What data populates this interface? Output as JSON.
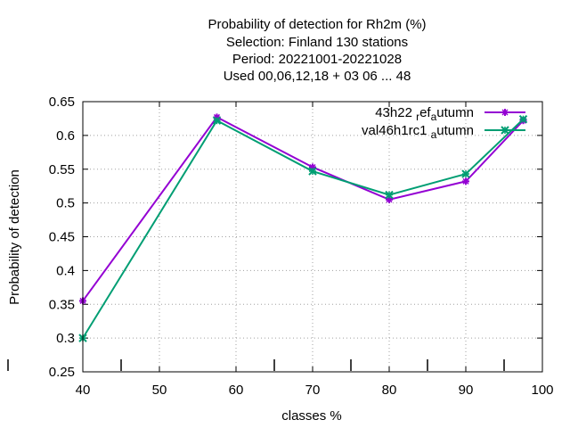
{
  "chart_data": {
    "type": "line",
    "title_lines": [
      "Probability of detection  for Rh2m (%)",
      "Selection: Finland    130 stations",
      "Period: 20221001-20221028",
      "Used  00,06,12,18  + 03 06 ... 48"
    ],
    "xlabel": "classes %",
    "ylabel": "Probability of detection",
    "xlim": [
      40,
      100
    ],
    "ylim": [
      0.25,
      0.65
    ],
    "x_ticks": [
      40,
      50,
      60,
      70,
      80,
      90,
      100
    ],
    "x_tick_labels": [
      "40",
      "50",
      "60",
      "70",
      "80",
      "90",
      "100"
    ],
    "y_ticks": [
      0.25,
      0.3,
      0.35,
      0.4,
      0.45,
      0.5,
      0.55,
      0.6,
      0.65
    ],
    "y_tick_labels": [
      "0.25",
      "0.3",
      "0.35",
      "0.4",
      "0.45",
      "0.5",
      "0.55",
      "0.6",
      "0.65"
    ],
    "extra_x_marks": [
      45,
      65,
      75,
      85,
      95
    ],
    "grid": true,
    "legend_position": "top-right",
    "series": [
      {
        "name": "43h22 ref autumn",
        "legend_parts": [
          "43h22 ",
          "r",
          "ef",
          "a",
          "utumn"
        ],
        "color": "#9400d3",
        "marker": "plus",
        "x": [
          40,
          57.5,
          70,
          80,
          90,
          97.5
        ],
        "y": [
          0.355,
          0.627,
          0.553,
          0.505,
          0.532,
          0.622
        ]
      },
      {
        "name": "val46h1rc1 autumn",
        "legend_parts": [
          "val46h1rc1 ",
          "a",
          "utumn"
        ],
        "color": "#009e73",
        "marker": "cross",
        "x": [
          40,
          57.5,
          70,
          80,
          90,
          97.5
        ],
        "y": [
          0.3,
          0.622,
          0.547,
          0.512,
          0.543,
          0.624
        ]
      }
    ]
  }
}
